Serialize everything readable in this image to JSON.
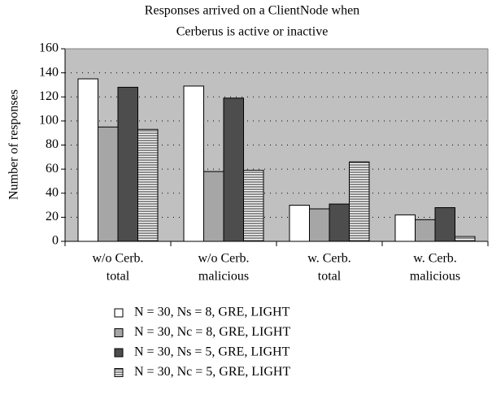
{
  "chart_data": {
    "type": "bar",
    "title": [
      "Responses arrived on a ClientNode when",
      "Cerberus is active or inactive"
    ],
    "y_label": "Number of responses",
    "categories": [
      [
        "w/o Cerb.",
        "total"
      ],
      [
        "w/o Cerb.",
        "malicious"
      ],
      [
        "w. Cerb.",
        "total"
      ],
      [
        "w. Cerb.",
        "malicious"
      ]
    ],
    "series": [
      {
        "name": "N = 30, Ns = 8, GRE, LIGHT",
        "color": "#ffffff",
        "values": [
          135,
          129,
          30,
          22
        ]
      },
      {
        "name": "N = 30, Nc = 8, GRE, LIGHT",
        "color": "#a6a6a6",
        "values": [
          95,
          58,
          27,
          18
        ]
      },
      {
        "name": "N = 30, Ns = 5, GRE, LIGHT",
        "color": "#4d4d4d",
        "values": [
          128,
          119,
          31,
          28
        ]
      },
      {
        "name": "N = 30, Nc = 5, GRE, LIGHT",
        "color": "#ffffff",
        "hatch": "#404040",
        "values": [
          93,
          59,
          66,
          4
        ]
      }
    ],
    "ylim": [
      0,
      160
    ],
    "yticks": [
      0,
      20,
      40,
      60,
      80,
      100,
      120,
      140,
      160
    ],
    "grid": true,
    "plot_background": "#c0c0c0",
    "legend": "bottom"
  }
}
